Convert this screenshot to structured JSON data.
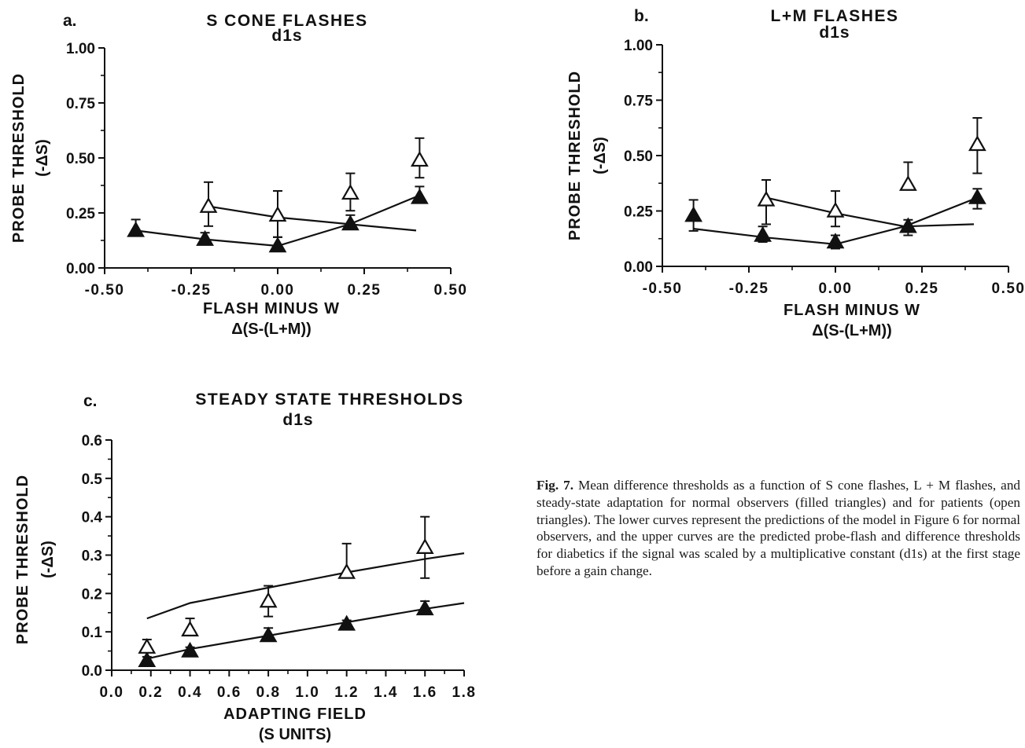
{
  "figure": {
    "caption_label": "Fig. 7.",
    "caption_text": "Mean difference thresholds as a function of S cone flashes, L + M flashes, and steady-state adaptation for normal observers (filled triangles) and for patients (open triangles). The lower curves represent the predictions of the model in Figure 6 for normal observers, and the upper curves are the predicted probe-flash and difference thresholds for diabetics if the signal was scaled by a multiplicative constant (d1s) at the first stage before a gain change."
  },
  "chart_data": [
    {
      "id": "a",
      "type": "scatter",
      "panel_label": "a.",
      "title": "S CONE FLASHES",
      "subtitle": "d1s",
      "xlabel": "FLASH MINUS W",
      "xlabel2": "Δ(S-(L+M))",
      "ylabel": "PROBE THRESHOLD",
      "ylabel2": "(-ΔS)",
      "xlim": [
        -0.5,
        0.5
      ],
      "ylim": [
        0,
        1.0
      ],
      "xticks": [
        "-0.50",
        "-0.25",
        "0.00",
        "0.25",
        "0.50"
      ],
      "yticks": [
        "0.00",
        "0.25",
        "0.50",
        "0.75",
        "1.00"
      ],
      "series": [
        {
          "marker": "filled-triangle",
          "x": [
            -0.41,
            -0.21,
            0.0,
            0.21,
            0.41
          ],
          "y": [
            0.17,
            0.13,
            0.1,
            0.2,
            0.32
          ],
          "err_up": [
            0.05,
            0.03,
            0.04,
            0.04,
            0.05
          ],
          "err_down": [
            0.0,
            0.0,
            0.0,
            0.0,
            0.0
          ]
        },
        {
          "marker": "open-triangle",
          "x": [
            -0.2,
            0.0,
            0.21,
            0.41
          ],
          "y": [
            0.28,
            0.24,
            0.34,
            0.49
          ],
          "err_up": [
            0.11,
            0.11,
            0.09,
            0.1
          ],
          "err_down": [
            0.09,
            0.1,
            0.08,
            0.08
          ]
        }
      ],
      "curves": [
        {
          "x": [
            -0.41,
            -0.21,
            0.0,
            0.21,
            0.41
          ],
          "y": [
            0.17,
            0.13,
            0.1,
            0.2,
            0.33
          ]
        },
        {
          "x": [
            -0.2,
            0.0,
            0.2,
            0.4
          ],
          "y": [
            0.28,
            0.23,
            0.2,
            0.17
          ]
        }
      ]
    },
    {
      "id": "b",
      "type": "scatter",
      "panel_label": "b.",
      "title": "L+M  FLASHES",
      "subtitle": "d1s",
      "xlabel": "FLASH MINUS W",
      "xlabel2": "Δ(S-(L+M))",
      "ylabel": "PROBE THRESHOLD",
      "ylabel2": "(-ΔS)",
      "xlim": [
        -0.5,
        0.5
      ],
      "ylim": [
        0,
        1.0
      ],
      "xticks": [
        "-0.50",
        "-0.25",
        "0.00",
        "0.25",
        "0.50"
      ],
      "yticks": [
        "0.00",
        "0.25",
        "0.50",
        "0.75",
        "1.00"
      ],
      "series": [
        {
          "marker": "filled-triangle",
          "x": [
            -0.41,
            -0.21,
            0.0,
            0.21,
            0.41
          ],
          "y": [
            0.23,
            0.14,
            0.11,
            0.18,
            0.31
          ],
          "err_up": [
            0.07,
            0.04,
            0.03,
            0.03,
            0.04
          ],
          "err_down": [
            0.07,
            0.03,
            0.03,
            0.04,
            0.05
          ]
        },
        {
          "marker": "open-triangle",
          "x": [
            -0.2,
            0.0,
            0.21,
            0.41
          ],
          "y": [
            0.3,
            0.25,
            0.37,
            0.55
          ],
          "err_up": [
            0.09,
            0.09,
            0.1,
            0.12
          ],
          "err_down": [
            0.11,
            0.07,
            0.0,
            0.13
          ]
        }
      ],
      "curves": [
        {
          "x": [
            -0.41,
            -0.2,
            0.0,
            0.2,
            0.41
          ],
          "y": [
            0.17,
            0.13,
            0.1,
            0.18,
            0.31
          ]
        },
        {
          "x": [
            -0.2,
            0.0,
            0.2,
            0.4
          ],
          "y": [
            0.31,
            0.24,
            0.18,
            0.19
          ]
        }
      ]
    },
    {
      "id": "c",
      "type": "scatter",
      "panel_label": "c.",
      "title": "STEADY  STATE  THRESHOLDS",
      "subtitle": "d1s",
      "xlabel": "ADAPTING  FIELD",
      "xlabel2": "(S UNITS)",
      "ylabel": "PROBE THRESHOLD",
      "ylabel2": "(-ΔS)",
      "xlim": [
        0.0,
        1.8
      ],
      "ylim": [
        0,
        0.6
      ],
      "xticks": [
        "0.0",
        "0.2",
        "0.4",
        "0.6",
        "0.8",
        "1.0",
        "1.2",
        "1.4",
        "1.6",
        "1.8"
      ],
      "yticks": [
        "0.0",
        "0.1",
        "0.2",
        "0.3",
        "0.4",
        "0.5",
        "0.6"
      ],
      "series": [
        {
          "marker": "filled-triangle",
          "x": [
            0.18,
            0.4,
            0.8,
            1.2,
            1.6
          ],
          "y": [
            0.025,
            0.05,
            0.09,
            0.12,
            0.16
          ],
          "err_up": [
            0.01,
            0.01,
            0.02,
            0.01,
            0.02
          ],
          "err_down": [
            0.0,
            0.0,
            0.0,
            0.0,
            0.0
          ]
        },
        {
          "marker": "open-triangle",
          "x": [
            0.18,
            0.4,
            0.8,
            1.2,
            1.6
          ],
          "y": [
            0.06,
            0.105,
            0.18,
            0.255,
            0.32
          ],
          "err_up": [
            0.02,
            0.03,
            0.04,
            0.075,
            0.08
          ],
          "err_down": [
            0.0,
            0.0,
            0.04,
            0.0,
            0.08
          ]
        }
      ],
      "curves": [
        {
          "x": [
            0.18,
            0.4,
            0.8,
            1.2,
            1.6,
            1.8
          ],
          "y": [
            0.03,
            0.055,
            0.09,
            0.125,
            0.16,
            0.175
          ]
        },
        {
          "x": [
            0.18,
            0.4,
            0.8,
            1.2,
            1.6,
            1.8
          ],
          "y": [
            0.135,
            0.175,
            0.215,
            0.255,
            0.29,
            0.305
          ]
        }
      ]
    }
  ]
}
